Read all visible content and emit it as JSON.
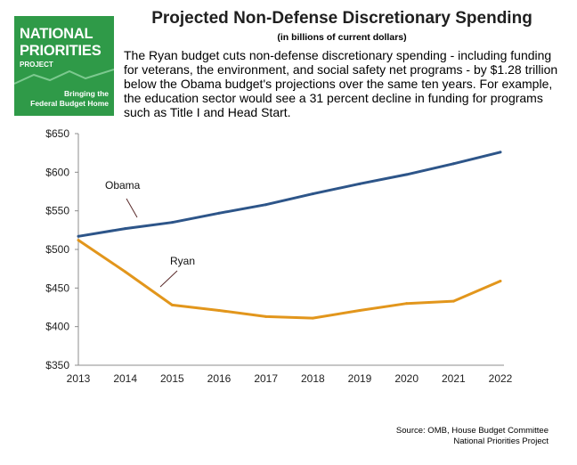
{
  "logo": {
    "line1": "NATIONAL",
    "line2": "PRIORITIES",
    "line3": "PROJECT",
    "tagline1": "Bringing the",
    "tagline2": "Federal Budget Home",
    "color": "#2f9a48"
  },
  "header": {
    "title": "Projected Non-Defense Discretionary Spending",
    "subtitle": "(in billions of current dollars)",
    "description": "The Ryan budget cuts non-defense discretionary spending - including funding for veterans, the environment, and social safety net programs - by $1.28 trillion below the Obama budget's projections over the same ten years. For example, the education sector would see a 31 percent decline in funding for programs such as Title I and Head Start."
  },
  "source": {
    "line1": "Source: OMB, House Budget Committee",
    "line2": "National Priorities Project"
  },
  "chart_data": {
    "type": "line",
    "x": [
      "2013",
      "2014",
      "2015",
      "2016",
      "2017",
      "2018",
      "2019",
      "2020",
      "2021",
      "2022"
    ],
    "ylim": [
      350,
      650
    ],
    "yticks": [
      350,
      400,
      450,
      500,
      550,
      600,
      650
    ],
    "ytick_labels": [
      "$350",
      "$400",
      "$450",
      "$500",
      "$550",
      "$600",
      "$650"
    ],
    "grid": false,
    "series": [
      {
        "name": "Obama",
        "color": "#2d5589",
        "values": [
          517,
          527,
          535,
          547,
          558,
          572,
          585,
          597,
          611,
          626
        ]
      },
      {
        "name": "Ryan",
        "color": "#e2961c",
        "values": [
          512,
          471,
          428,
          421,
          413,
          411,
          421,
          430,
          433,
          459
        ]
      }
    ]
  }
}
